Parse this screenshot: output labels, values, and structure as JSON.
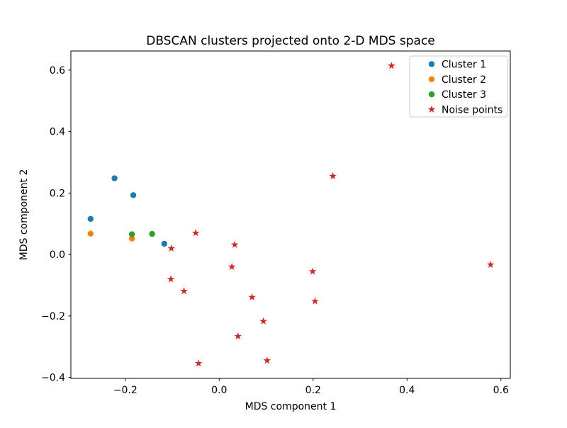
{
  "chart_data": {
    "type": "scatter",
    "title": "DBSCAN clusters projected onto 2-D MDS space",
    "xlabel": "MDS component 1",
    "ylabel": "MDS component 2",
    "xlim": [
      -0.316,
      0.62
    ],
    "ylim": [
      -0.403,
      0.662
    ],
    "xticks": [
      -0.2,
      0.0,
      0.2,
      0.4,
      0.6
    ],
    "yticks": [
      -0.4,
      -0.2,
      0.0,
      0.2,
      0.4,
      0.6
    ],
    "grid": false,
    "legend_position": "upper right",
    "background_color": "#ffffff",
    "series": [
      {
        "name": "Cluster 1",
        "marker": "circle",
        "color": "#1f77b4",
        "points": [
          [
            -0.274,
            0.116
          ],
          [
            -0.223,
            0.248
          ],
          [
            -0.183,
            0.193
          ],
          [
            -0.117,
            0.035
          ]
        ]
      },
      {
        "name": "Cluster 2",
        "marker": "circle",
        "color": "#ff7f0e",
        "points": [
          [
            -0.274,
            0.068
          ],
          [
            -0.186,
            0.052
          ]
        ]
      },
      {
        "name": "Cluster 3",
        "marker": "circle",
        "color": "#2ca02c",
        "points": [
          [
            -0.186,
            0.066
          ],
          [
            -0.143,
            0.067
          ]
        ]
      },
      {
        "name": "Noise points",
        "marker": "star",
        "color": "#d62728",
        "points": [
          [
            0.367,
            0.614
          ],
          [
            0.242,
            0.255
          ],
          [
            -0.05,
            0.07
          ],
          [
            0.033,
            0.032
          ],
          [
            -0.102,
            0.02
          ],
          [
            0.027,
            -0.04
          ],
          [
            -0.103,
            -0.08
          ],
          [
            -0.075,
            -0.119
          ],
          [
            0.07,
            -0.139
          ],
          [
            0.199,
            -0.055
          ],
          [
            0.204,
            -0.152
          ],
          [
            0.094,
            -0.217
          ],
          [
            0.04,
            -0.266
          ],
          [
            0.102,
            -0.345
          ],
          [
            -0.044,
            -0.354
          ],
          [
            0.578,
            -0.033
          ]
        ]
      }
    ]
  }
}
